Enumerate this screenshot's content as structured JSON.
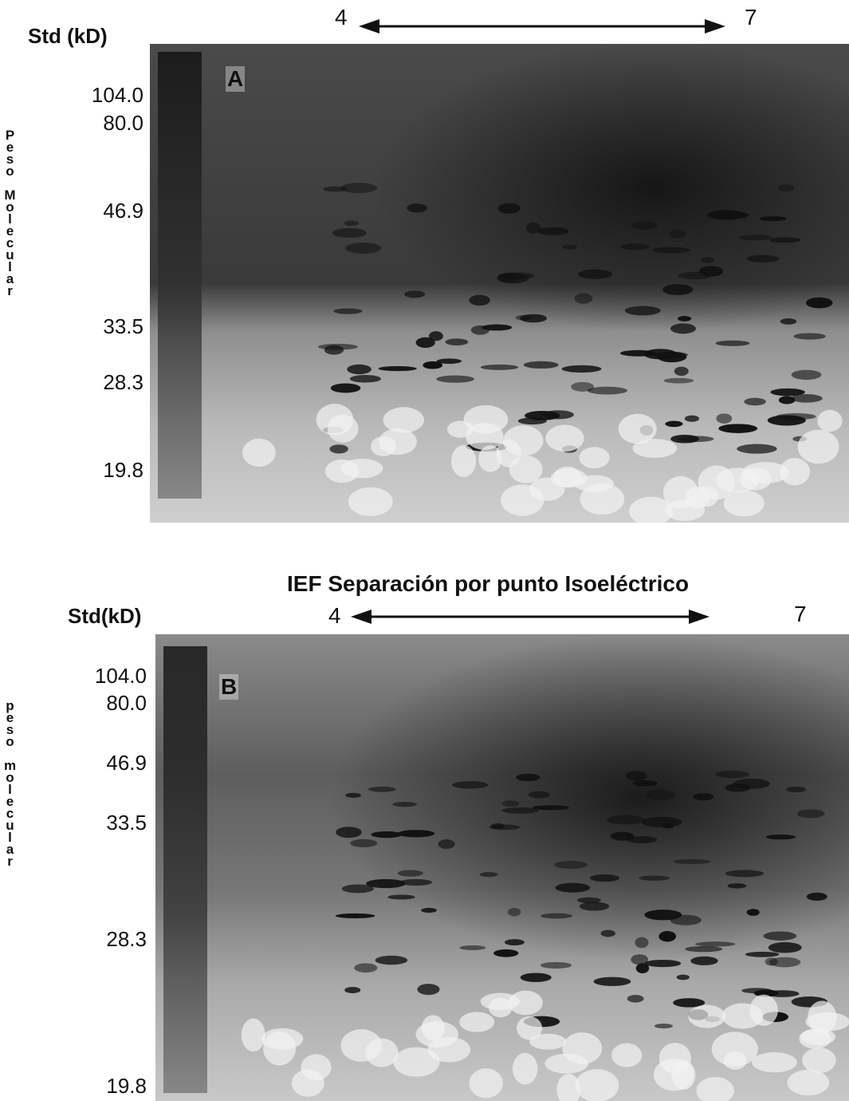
{
  "panels": [
    {
      "letter": "A",
      "std_label": "Std (kD)",
      "ph_start": "4",
      "ph_end": "7",
      "y_label": "Peso Molecular",
      "mw_labels": [
        "104.0",
        "80.0",
        "46.9",
        "33.5",
        "28.3",
        "19.8"
      ]
    },
    {
      "letter": "B",
      "title": "IEF Separación por punto Isoeléctrico",
      "std_label": "Std(kD)",
      "ph_start": "4",
      "ph_end": "7",
      "y_label": "peso molecular",
      "mw_labels": [
        "104.0",
        "80.0",
        "46.9",
        "33.5",
        "28.3",
        "19.8"
      ]
    }
  ]
}
